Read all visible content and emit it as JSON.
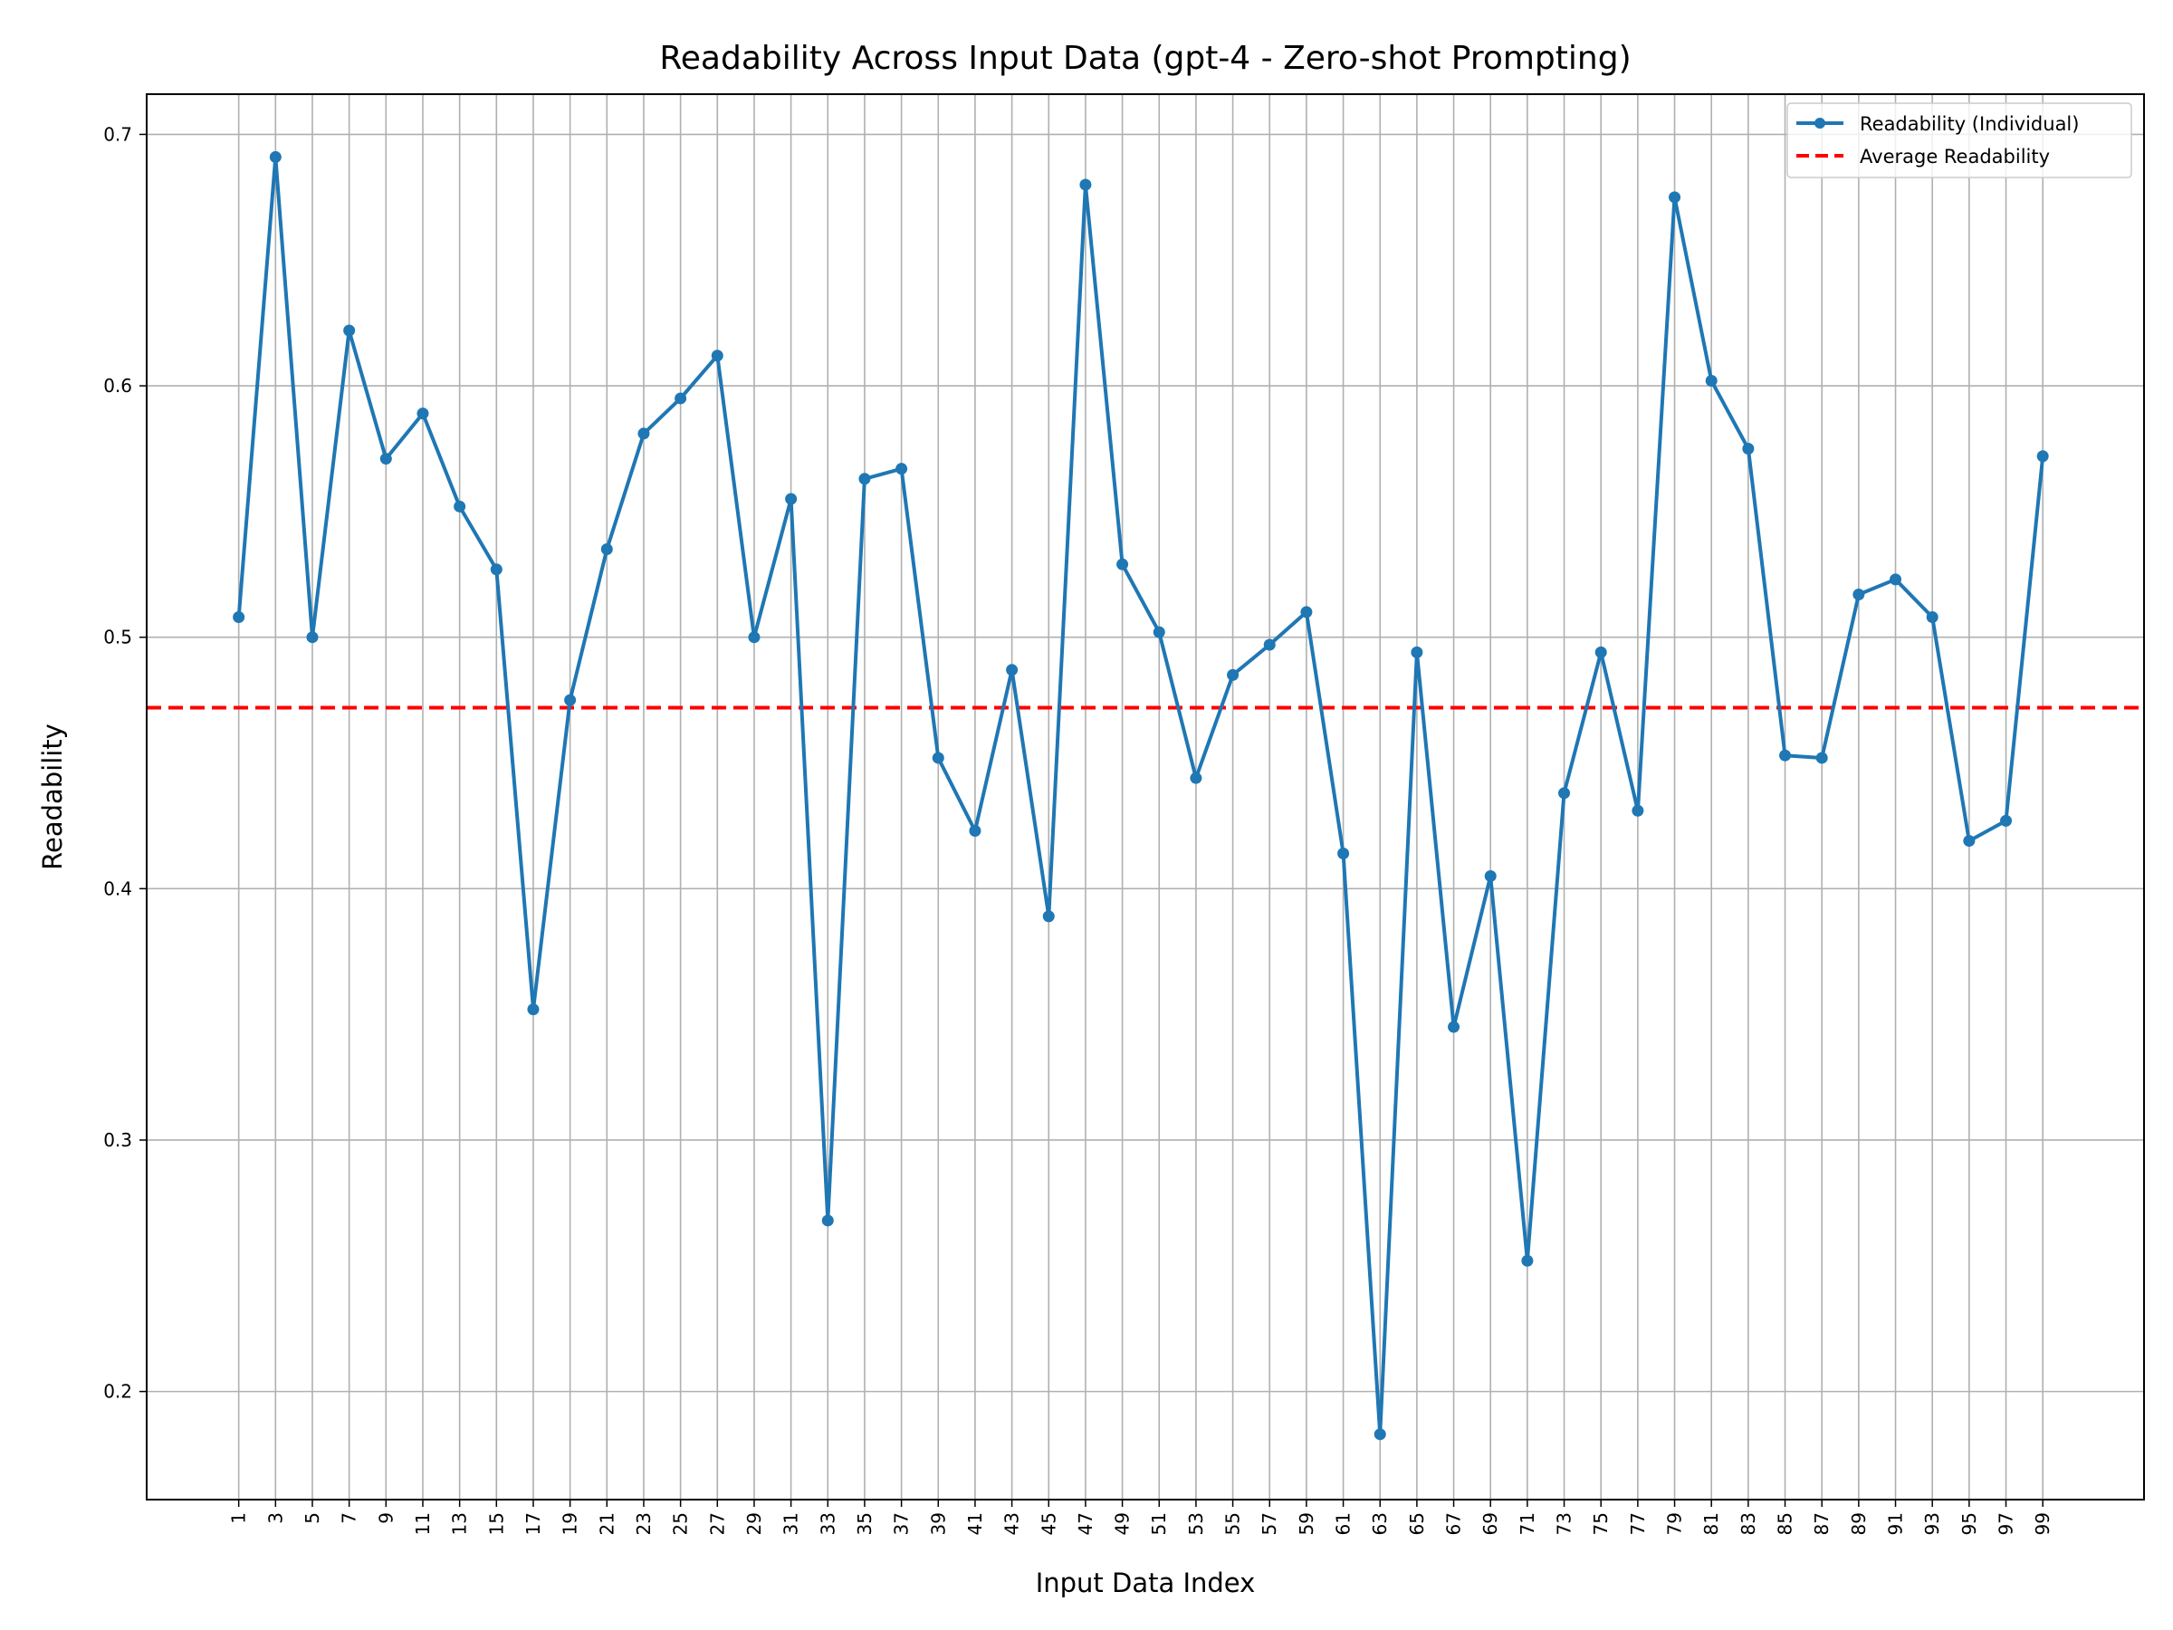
{
  "chart_data": {
    "type": "line",
    "title": "Readability Across Input Data (gpt-4 - Zero-shot Prompting)",
    "xlabel": "Input Data Index",
    "ylabel": "Readability",
    "x": [
      1,
      3,
      5,
      7,
      9,
      11,
      13,
      15,
      17,
      19,
      21,
      23,
      25,
      27,
      29,
      31,
      33,
      35,
      37,
      39,
      41,
      43,
      45,
      47,
      49,
      51,
      53,
      55,
      57,
      59,
      61,
      63,
      65,
      67,
      69,
      71,
      73,
      75,
      77,
      79,
      81,
      83,
      85,
      87,
      89,
      91,
      93,
      95,
      97,
      99
    ],
    "x_ticks": [
      "1",
      "3",
      "5",
      "7",
      "9",
      "11",
      "13",
      "15",
      "17",
      "19",
      "21",
      "23",
      "25",
      "27",
      "29",
      "31",
      "33",
      "35",
      "37",
      "39",
      "41",
      "43",
      "45",
      "47",
      "49",
      "51",
      "53",
      "55",
      "57",
      "59",
      "61",
      "63",
      "65",
      "67",
      "69",
      "71",
      "73",
      "75",
      "77",
      "79",
      "81",
      "83",
      "85",
      "87",
      "89",
      "91",
      "93",
      "95",
      "97",
      "99"
    ],
    "y_ticks": [
      "0.2",
      "0.3",
      "0.4",
      "0.5",
      "0.6",
      "0.7"
    ],
    "xlim": [
      -4,
      104.5
    ],
    "ylim": [
      0.157,
      0.716
    ],
    "grid": true,
    "legend_position": "top-right",
    "series": [
      {
        "name": "Readability (Individual)",
        "color": "#1f77b4",
        "style": "solid-with-markers",
        "values": [
          0.508,
          0.691,
          0.5,
          0.622,
          0.571,
          0.589,
          0.552,
          0.527,
          0.352,
          0.475,
          0.535,
          0.581,
          0.595,
          0.612,
          0.5,
          0.555,
          0.268,
          0.563,
          0.567,
          0.452,
          0.423,
          0.487,
          0.389,
          0.68,
          0.529,
          0.502,
          0.444,
          0.485,
          0.497,
          0.51,
          0.414,
          0.183,
          0.494,
          0.345,
          0.405,
          0.252,
          0.438,
          0.494,
          0.431,
          0.675,
          0.602,
          0.575,
          0.453,
          0.452,
          0.517,
          0.523,
          0.508,
          0.419,
          0.427,
          0.572
        ]
      },
      {
        "name": "Average Readability",
        "color": "#ff0000",
        "style": "dashed",
        "value": 0.472
      }
    ]
  }
}
